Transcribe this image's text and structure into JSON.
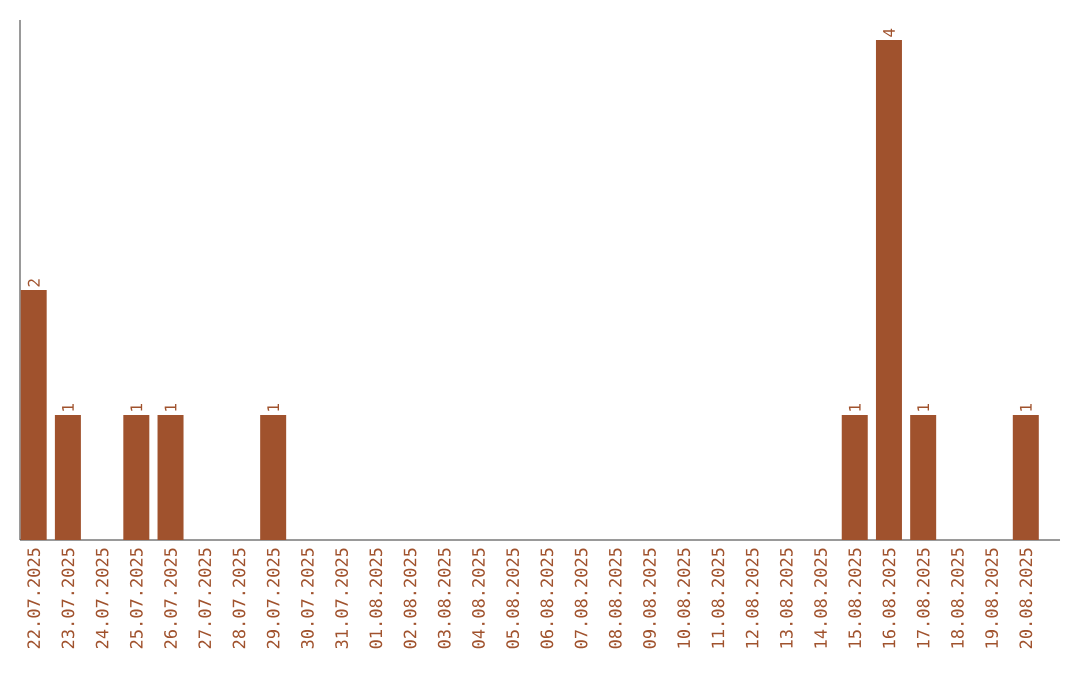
{
  "chart_data": {
    "type": "bar",
    "categories": [
      "22.07.2025",
      "23.07.2025",
      "24.07.2025",
      "25.07.2025",
      "26.07.2025",
      "27.07.2025",
      "28.07.2025",
      "29.07.2025",
      "30.07.2025",
      "31.07.2025",
      "01.08.2025",
      "02.08.2025",
      "03.08.2025",
      "04.08.2025",
      "05.08.2025",
      "06.08.2025",
      "07.08.2025",
      "08.08.2025",
      "09.08.2025",
      "10.08.2025",
      "11.08.2025",
      "12.08.2025",
      "13.08.2025",
      "14.08.2025",
      "15.08.2025",
      "16.08.2025",
      "17.08.2025",
      "18.08.2025",
      "19.08.2025",
      "20.08.2025"
    ],
    "values": [
      2,
      1,
      0,
      1,
      1,
      0,
      0,
      1,
      0,
      0,
      0,
      0,
      0,
      0,
      0,
      0,
      0,
      0,
      0,
      0,
      0,
      0,
      0,
      0,
      1,
      4,
      1,
      0,
      0,
      1
    ],
    "value_labels": [
      "2",
      "1",
      null,
      "1",
      "1",
      null,
      null,
      "1",
      null,
      null,
      null,
      null,
      null,
      null,
      null,
      null,
      null,
      null,
      null,
      null,
      null,
      null,
      null,
      null,
      "1",
      "4",
      "1",
      null,
      null,
      "1"
    ],
    "color": "#a0522d"
  }
}
